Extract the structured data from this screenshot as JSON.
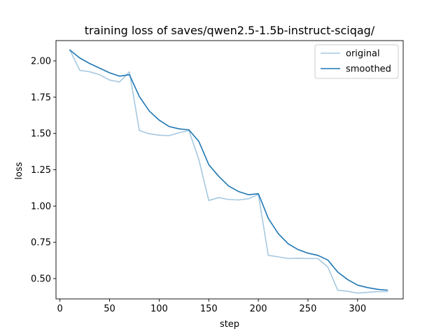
{
  "chart_data": {
    "type": "line",
    "title": "training loss of saves/qwen2.5-1.5b-instruct-sciqag/",
    "xlabel": "step",
    "ylabel": "loss",
    "xlim": [
      -4,
      346
    ],
    "ylim": [
      0.36,
      2.14
    ],
    "xticks": [
      0,
      50,
      100,
      150,
      200,
      250,
      300
    ],
    "yticks": [
      0.5,
      0.75,
      1.0,
      1.25,
      1.5,
      1.75,
      2.0
    ],
    "ytick_labels": [
      "0.50",
      "0.75",
      "1.00",
      "1.25",
      "1.50",
      "1.75",
      "2.00"
    ],
    "legend_position": "top-right",
    "x": [
      10,
      20,
      30,
      40,
      50,
      60,
      70,
      80,
      90,
      100,
      110,
      120,
      130,
      140,
      150,
      160,
      170,
      180,
      190,
      200,
      210,
      220,
      230,
      240,
      250,
      260,
      270,
      280,
      290,
      300,
      310,
      320,
      330
    ],
    "series": [
      {
        "name": "original",
        "color": "#a6c8e0",
        "values": [
          2.075,
          1.935,
          1.925,
          1.905,
          1.868,
          1.855,
          1.925,
          1.52,
          1.498,
          1.488,
          1.485,
          1.505,
          1.52,
          1.32,
          1.038,
          1.058,
          1.045,
          1.042,
          1.05,
          1.08,
          0.66,
          0.65,
          0.638,
          0.64,
          0.638,
          0.638,
          0.58,
          0.42,
          0.412,
          0.4,
          0.405,
          0.41,
          0.41
        ]
      },
      {
        "name": "smoothed",
        "color": "#1f77b4",
        "values": [
          2.075,
          2.02,
          1.982,
          1.95,
          1.918,
          1.895,
          1.905,
          1.755,
          1.655,
          1.592,
          1.548,
          1.532,
          1.525,
          1.445,
          1.285,
          1.205,
          1.138,
          1.1,
          1.078,
          1.085,
          0.915,
          0.81,
          0.74,
          0.7,
          0.675,
          0.66,
          0.628,
          0.545,
          0.493,
          0.455,
          0.438,
          0.426,
          0.42
        ]
      }
    ]
  }
}
